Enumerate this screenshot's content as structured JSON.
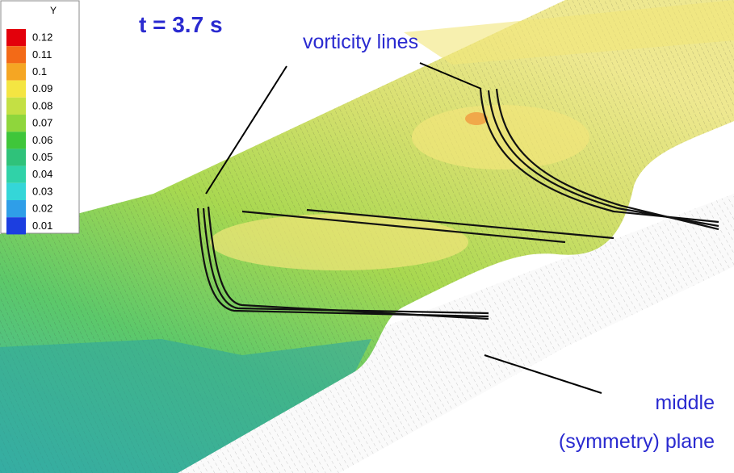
{
  "colorbar": {
    "title": "Y",
    "levels": [
      0.12,
      0.11,
      0.1,
      0.09,
      0.08,
      0.07,
      0.06,
      0.05,
      0.04,
      0.03,
      0.02,
      0.01
    ],
    "colors": [
      "#e3000b",
      "#f36a17",
      "#f5a623",
      "#f4e542",
      "#c4e044",
      "#8fd63c",
      "#3fc63a",
      "#2fc27a",
      "#30d2a8",
      "#34d6d8",
      "#2f9ee8",
      "#1c3ee0"
    ]
  },
  "annotations": {
    "time": "t = 3.7 s",
    "vorticity": "vorticity lines",
    "plane_line1": "middle",
    "plane_line2": "(symmetry) plane"
  }
}
